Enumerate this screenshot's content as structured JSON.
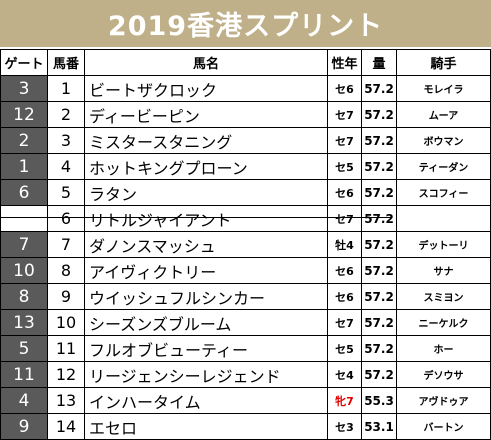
{
  "title": "2019香港スプリント",
  "headers": {
    "gate": "ゲート",
    "num": "馬番",
    "name": "馬名",
    "sex": "性年",
    "weight": "量",
    "jockey": "騎手"
  },
  "rows": [
    {
      "gate": "3",
      "num": "1",
      "name": "ビートザクロック",
      "sex": "セ6",
      "weight": "57.2",
      "jockey": "モレイラ",
      "sex_color": "#000000"
    },
    {
      "gate": "12",
      "num": "2",
      "name": "ディービーピン",
      "sex": "セ7",
      "weight": "57.2",
      "jockey": "ムーア",
      "sex_color": "#000000"
    },
    {
      "gate": "2",
      "num": "3",
      "name": "ミスタースタニング",
      "sex": "セ7",
      "weight": "57.2",
      "jockey": "ボウマン",
      "sex_color": "#000000"
    },
    {
      "gate": "1",
      "num": "4",
      "name": "ホットキングプローン",
      "sex": "セ5",
      "weight": "57.2",
      "jockey": "ティーダン",
      "sex_color": "#000000"
    },
    {
      "gate": "6",
      "num": "5",
      "name": "ラタン",
      "sex": "セ6",
      "weight": "57.2",
      "jockey": "スコフィー",
      "sex_color": "#000000"
    },
    {
      "gate": "",
      "num": "6",
      "name": "リトルジャイアント",
      "sex": "セ7",
      "weight": "57.2",
      "jockey": "",
      "sex_color": "#000000",
      "scratched": true
    },
    {
      "gate": "7",
      "num": "7",
      "name": "ダノンスマッシュ",
      "sex": "牡4",
      "weight": "57.2",
      "jockey": "デットーリ",
      "sex_color": "#000000"
    },
    {
      "gate": "10",
      "num": "8",
      "name": "アイヴィクトリー",
      "sex": "セ6",
      "weight": "57.2",
      "jockey": "サナ",
      "sex_color": "#000000"
    },
    {
      "gate": "8",
      "num": "9",
      "name": "ウイッシュフルシンカー",
      "sex": "セ6",
      "weight": "57.2",
      "jockey": "スミヨン",
      "sex_color": "#000000"
    },
    {
      "gate": "13",
      "num": "10",
      "name": "シーズンズブルーム",
      "sex": "セ7",
      "weight": "57.2",
      "jockey": "ニーケルク",
      "sex_color": "#000000"
    },
    {
      "gate": "5",
      "num": "11",
      "name": "フルオブビューティー",
      "sex": "セ5",
      "weight": "57.2",
      "jockey": "ホー",
      "sex_color": "#000000"
    },
    {
      "gate": "11",
      "num": "12",
      "name": "リージェンシーレジェンド",
      "sex": "セ4",
      "weight": "57.2",
      "jockey": "デソウサ",
      "sex_color": "#000000"
    },
    {
      "gate": "4",
      "num": "13",
      "name": "インハータイム",
      "sex": "牝7",
      "weight": "55.3",
      "jockey": "アヴドゥア",
      "sex_color": "#e00000"
    },
    {
      "gate": "9",
      "num": "14",
      "name": "エセロ",
      "sex": "セ3",
      "weight": "53.1",
      "jockey": "バートン",
      "sex_color": "#000000"
    }
  ]
}
